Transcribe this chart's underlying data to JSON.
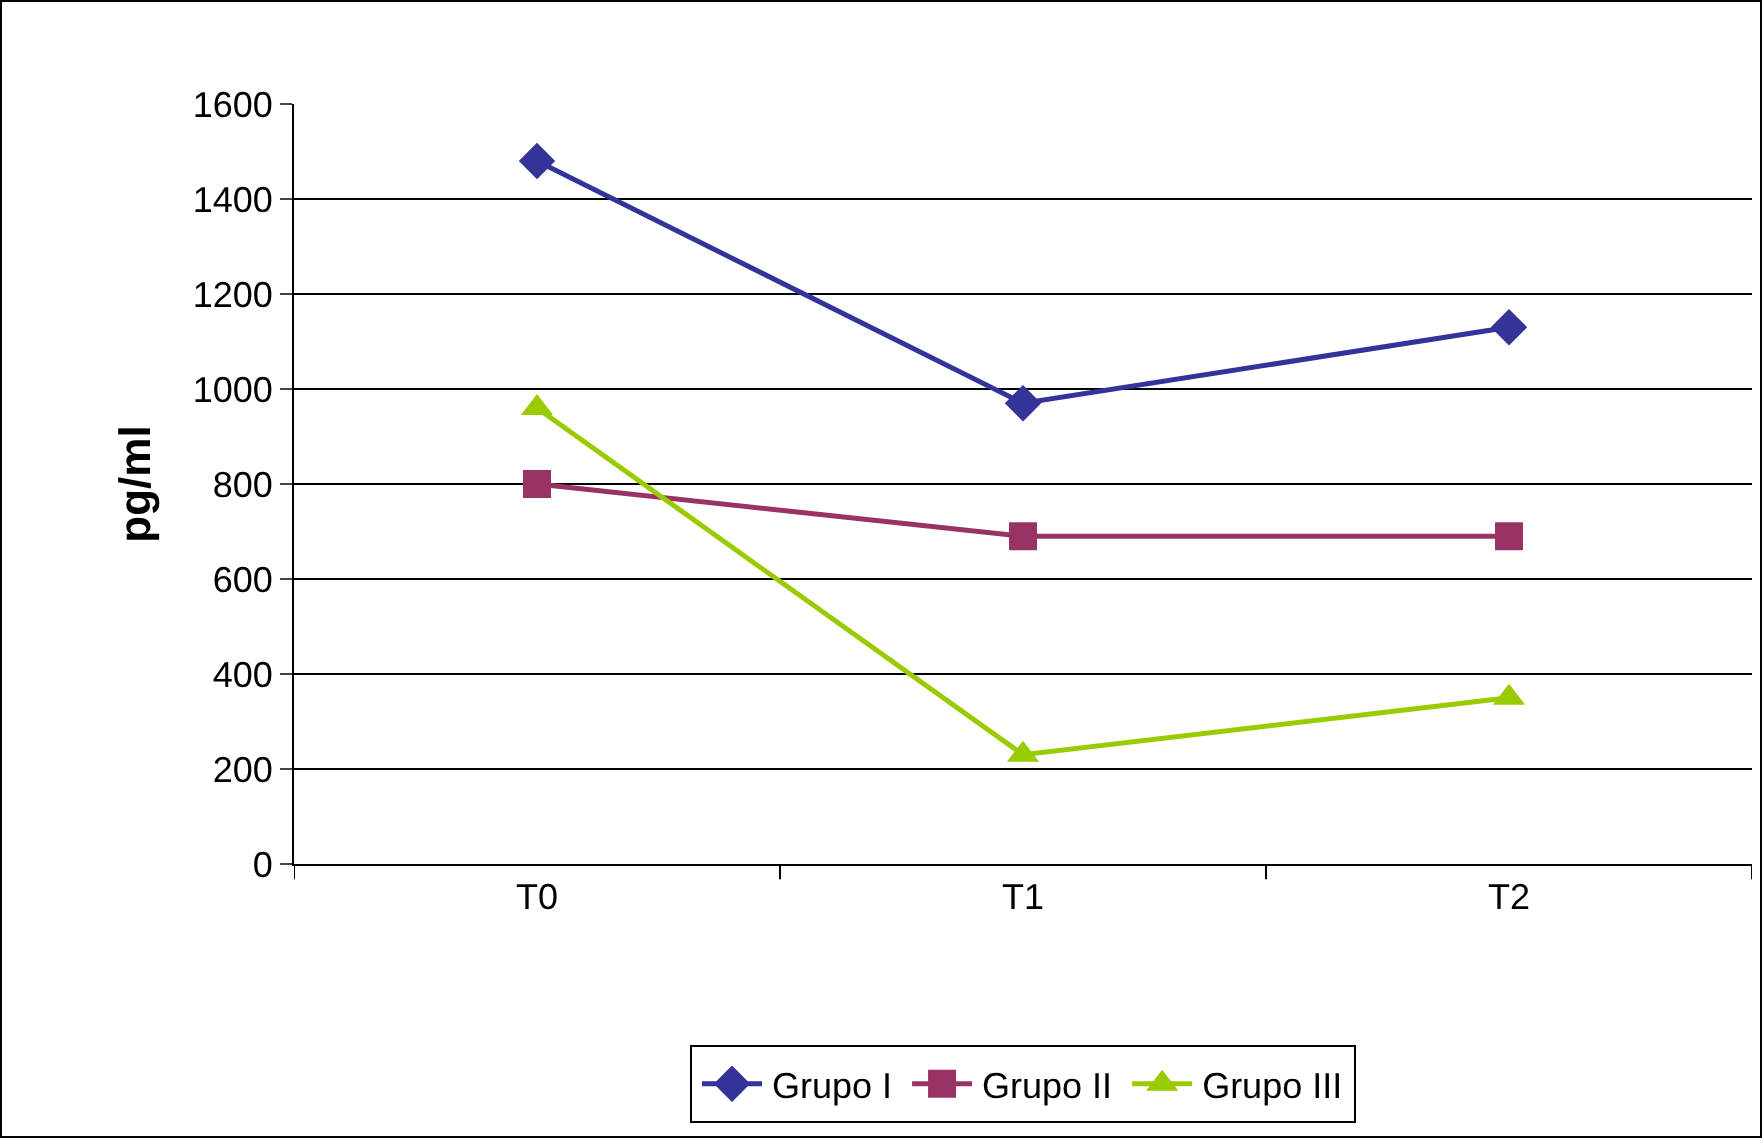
{
  "chart_data": {
    "type": "line",
    "ylabel": "pg/ml",
    "categories": [
      "T0",
      "T1",
      "T2"
    ],
    "series": [
      {
        "name": "Grupo I",
        "color": "#333399",
        "marker": "diamond",
        "values": [
          1480,
          970,
          1130
        ]
      },
      {
        "name": "Grupo II",
        "color": "#993366",
        "marker": "square",
        "values": [
          800,
          690,
          690
        ]
      },
      {
        "name": "Grupo III",
        "color": "#99cc00",
        "marker": "triangle",
        "values": [
          960,
          230,
          350
        ]
      }
    ],
    "ylim": [
      0,
      1600
    ],
    "yticks": [
      0,
      200,
      400,
      600,
      800,
      1000,
      1200,
      1400,
      1600
    ],
    "grid": "y",
    "legend": "bottom",
    "line_style": "solid"
  }
}
